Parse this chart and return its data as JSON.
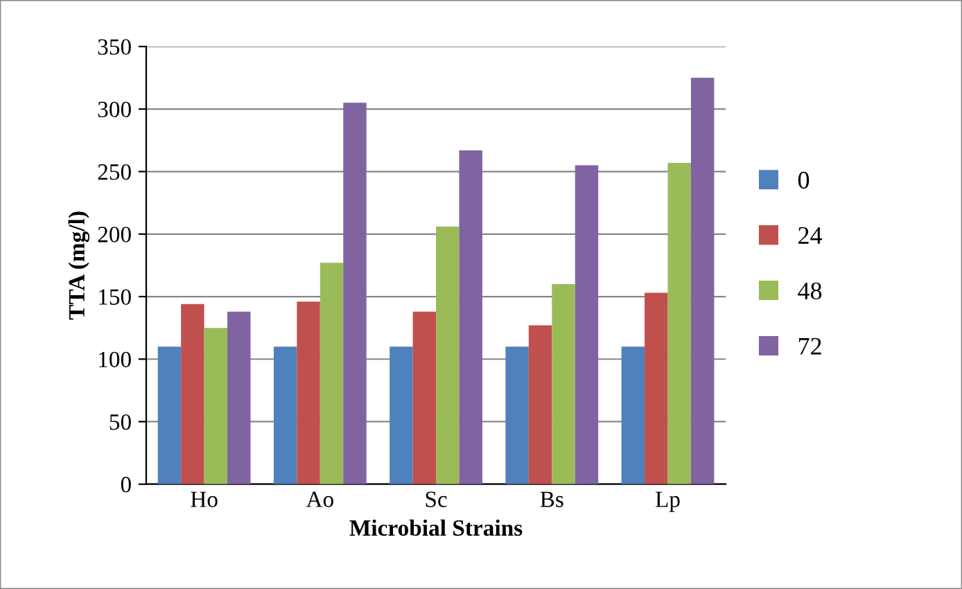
{
  "chart_data": {
    "type": "bar",
    "xlabel": "Microbial Strains",
    "ylabel": "TTA (mg/l)",
    "categories": [
      "Ho",
      "Ao",
      "Sc",
      "Bs",
      "Lp"
    ],
    "series": [
      {
        "name": "0",
        "color": "#4f81bd",
        "values": [
          110,
          110,
          110,
          110,
          110
        ]
      },
      {
        "name": "24",
        "color": "#c0504d",
        "values": [
          144,
          146,
          138,
          127,
          153
        ]
      },
      {
        "name": "48",
        "color": "#9bbb59",
        "values": [
          125,
          177,
          206,
          160,
          257
        ]
      },
      {
        "name": "72",
        "color": "#8064a2",
        "values": [
          138,
          305,
          267,
          255,
          325
        ]
      }
    ],
    "ylim": [
      0,
      350
    ],
    "yticks": [
      0,
      50,
      100,
      150,
      200,
      250,
      300,
      350
    ],
    "grid": "y",
    "legend": "right"
  }
}
